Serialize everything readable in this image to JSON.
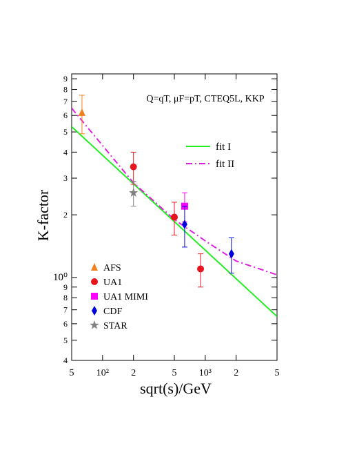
{
  "chart_data": {
    "type": "scatter",
    "annotation": "Q=qT, μF=pT, CTEQ5L, KKP",
    "x_label": "sqrt(s)/GeV",
    "y_label": "K-factor",
    "xscale": "log",
    "yscale": "log",
    "xlim": [
      50,
      5000
    ],
    "ylim": [
      0.4,
      9.5
    ],
    "xticks": [
      {
        "value": 50,
        "label": "5"
      },
      {
        "value": 100,
        "label": "10²"
      },
      {
        "value": 200,
        "label": "2"
      },
      {
        "value": 500,
        "label": "5"
      },
      {
        "value": 1000,
        "label": "10³"
      },
      {
        "value": 2000,
        "label": "2"
      },
      {
        "value": 5000,
        "label": "5"
      }
    ],
    "yticks": [
      {
        "value": 0.4,
        "label": "4"
      },
      {
        "value": 0.5,
        "label": "5"
      },
      {
        "value": 0.6,
        "label": "6"
      },
      {
        "value": 0.7,
        "label": "7"
      },
      {
        "value": 0.8,
        "label": "8"
      },
      {
        "value": 0.9,
        "label": "9"
      },
      {
        "value": 1,
        "label": "10⁰"
      },
      2,
      3,
      4,
      5,
      6,
      7,
      8,
      9
    ],
    "series": [
      {
        "name": "fit I",
        "color": "#22ee22",
        "style": "solid",
        "x": [
          50,
          5000
        ],
        "values": [
          5.3,
          0.65
        ]
      },
      {
        "name": "fit II",
        "color": "#e020e0",
        "style": "dashed",
        "x": [
          50,
          100,
          200,
          500,
          1000,
          2000,
          5000
        ],
        "values": [
          6.5,
          4.3,
          2.85,
          1.9,
          1.5,
          1.2,
          1.03
        ]
      },
      {
        "name": "AFS",
        "color": "#f08020",
        "marker": "triangle",
        "x": [
          63
        ],
        "values": [
          6.2
        ],
        "errors": [
          1.3
        ]
      },
      {
        "name": "UA1",
        "color": "#e8141e",
        "marker": "circle",
        "x": [
          200,
          500,
          900
        ],
        "values": [
          3.4,
          1.95,
          1.1
        ],
        "errors": [
          0.6,
          0.35,
          0.2
        ]
      },
      {
        "name": "UA1 MIMI",
        "color": "#ff00ff",
        "marker": "square",
        "x": [
          630
        ],
        "values": [
          2.2
        ],
        "errors": [
          0.35
        ]
      },
      {
        "name": "CDF",
        "color": "#0000dd",
        "marker": "diamond",
        "x": [
          630,
          1800
        ],
        "values": [
          1.8,
          1.3
        ],
        "errors": [
          0.4,
          0.25
        ]
      },
      {
        "name": "STAR",
        "color": "#808080",
        "marker": "star",
        "x": [
          200
        ],
        "values": [
          2.55
        ],
        "errors": [
          0.35
        ]
      }
    ]
  }
}
